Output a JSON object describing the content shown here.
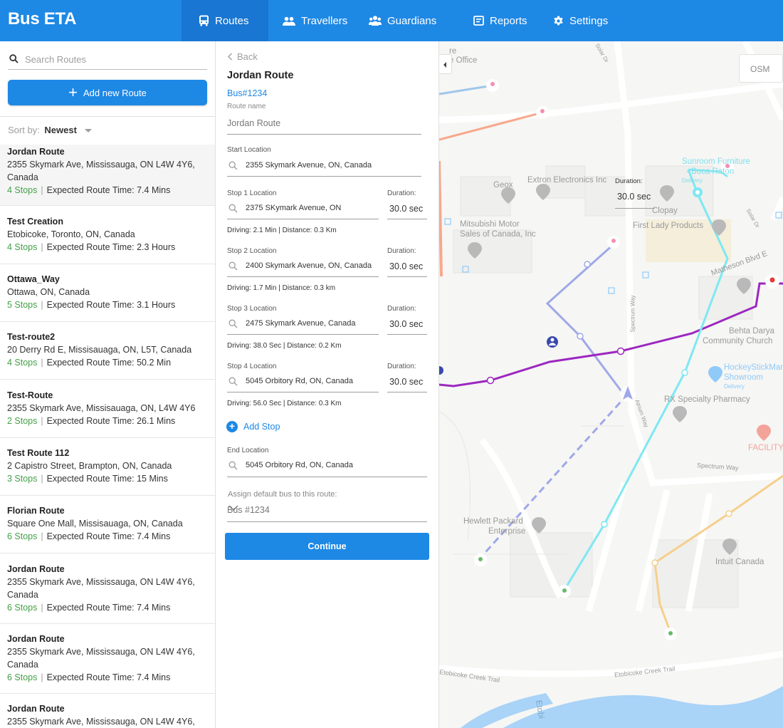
{
  "app": {
    "title": "Bus ETA"
  },
  "nav": {
    "routes": "Routes",
    "travellers": "Travellers",
    "guardians": "Guardians",
    "reports": "Reports",
    "settings": "Settings"
  },
  "sidebar": {
    "search_placeholder": "Search Routes",
    "add_label": "Add new Route",
    "sort_label": "Sort by:",
    "sort_value": "Newest",
    "routes": [
      {
        "name": "Jordan Route",
        "address": "2355 Skymark Ave, Mississauga, ON L4W 4Y6, Canada",
        "stops": "4 Stops",
        "time": "Expected Route Time: 7.4 Mins"
      },
      {
        "name": "Test Creation",
        "address": "Etobicoke, Toronto, ON, Canada",
        "stops": "4 Stops",
        "time": "Expected Route Time: 2.3 Hours"
      },
      {
        "name": "Ottawa_Way",
        "address": "Ottawa, ON, Canada",
        "stops": "5 Stops",
        "time": "Expected Route Time: 3.1 Hours"
      },
      {
        "name": "Test-route2",
        "address": "20 Derry Rd E, Missisauaga, ON, L5T, Canada",
        "stops": "4 Stops",
        "time": "Expected Route Time: 50.2 Min"
      },
      {
        "name": "Test-Route",
        "address": "2355 Skymark Ave, Missisauaga, ON, L4W 4Y6",
        "stops": "2 Stops",
        "time": "Expected Route Time: 26.1 Mins"
      },
      {
        "name": "Test Route 112",
        "address": "2 Capistro Street, Brampton, ON, Canada",
        "stops": "3 Stops",
        "time": "Expected Route Time: 15 Mins"
      },
      {
        "name": "Florian Route",
        "address": "Square One Mall, Missisauaga, ON, Canada",
        "stops": "6 Stops",
        "time": "Expected Route Time: 7.4 Mins"
      },
      {
        "name": "Jordan Route",
        "address": "2355 Skymark Ave, Mississauga, ON L4W 4Y6, Canada",
        "stops": "6 Stops",
        "time": "Expected Route Time: 7.4 Mins"
      },
      {
        "name": "Jordan Route",
        "address": "2355 Skymark Ave, Mississauga, ON L4W 4Y6, Canada",
        "stops": "6 Stops",
        "time": "Expected Route Time: 7.4 Mins"
      },
      {
        "name": "Jordan Route",
        "address": "2355 Skymark Ave, Mississauga, ON L4W 4Y6,",
        "stops": "",
        "time": ""
      }
    ]
  },
  "panel": {
    "back": "Back",
    "title": "Jordan Route",
    "bus": "Bus#1234",
    "route_name_label": "Route name",
    "route_name_value": "Jordan Route",
    "start_label": "Start Location",
    "start_value": "2355 Skymark Avenue, ON, Canada",
    "duration_label": "Duration:",
    "stops": [
      {
        "label": "Stop 1 Location",
        "value": "2375 SKymark Avenue, ON",
        "duration": "30.0 sec",
        "driving": "Driving: 2.1 Min | Distance: 0.3 Km"
      },
      {
        "label": "Stop 2 Location",
        "value": "2400 Skymark Avenue, ON, Canada",
        "duration": "30.0 sec",
        "driving": "Driving: 1.7 Min | Distance: 0.3 km"
      },
      {
        "label": "Stop 3 Location",
        "value": "2475 Skymark Avenue, Canada",
        "duration": "30.0 sec",
        "driving": "Driving: 38.0 Sec | Distance: 0.2 Km"
      },
      {
        "label": "Stop 4 Location",
        "value": "5045 Orbitory Rd, ON, Canada",
        "duration": "30.0 sec",
        "driving": "Driving: 56.0 Sec | Distance: 0.3 Km"
      }
    ],
    "add_stop": "Add Stop",
    "end_label": "End Location",
    "end_value": "5045 Orbitory Rd, ON, Canada",
    "assign_label": "Assign default bus to this route:",
    "assign_value": "Bus #1234",
    "continue": "Continue"
  },
  "map": {
    "osm_label": "OSM",
    "duration_label": "Duration:",
    "duration_value": "30.0 sec",
    "places": {
      "office": "e Office",
      "office_top": "re",
      "geox": "Geox",
      "extron": "Extron Electronics Inc",
      "mitsubishi1": "Mitsubishi Motor",
      "mitsubishi2": "Sales of Canada, Inc",
      "sunroom1": "Sunroom Furniture",
      "sunroom2": "- Boca Raton",
      "sunroom3": "Delivery",
      "clopay": "Clopay",
      "firstlady": "First Lady Products",
      "matheson": "Matheson Blvd E",
      "behta1": "Behta Darya",
      "behta2": "Community Church",
      "hockey1": "HockeyStickMan",
      "hockey2": "Showroom",
      "hockey3": "Delivery",
      "rx": "RX Specialty Pharmacy",
      "facility": "FACILITY",
      "spectrum_way": "Spectrum Way",
      "hp1": "Hewlett Packard",
      "hp2": "Enterprise",
      "intuit": "Intuit Canada",
      "trail1": "Etobicoke Creek Trail",
      "trail2": "Etobicoke Creek Trail",
      "etobi": "Etobi",
      "solar": "Solar Dr",
      "solar2": "Solar Dr",
      "spectrum_v": "Spectrum Way",
      "atrium": "Atrium Way"
    }
  },
  "colors": {
    "primary": "#1e88e5",
    "stops_green": "#43a047",
    "route_purple": "#9c27c0",
    "route_cyan": "#7ee8f2",
    "route_lavender": "#9fa8e8",
    "route_salmon": "#f7a88c",
    "route_blue_light": "#9ec7ea",
    "route_orange": "#f5cf8c"
  }
}
